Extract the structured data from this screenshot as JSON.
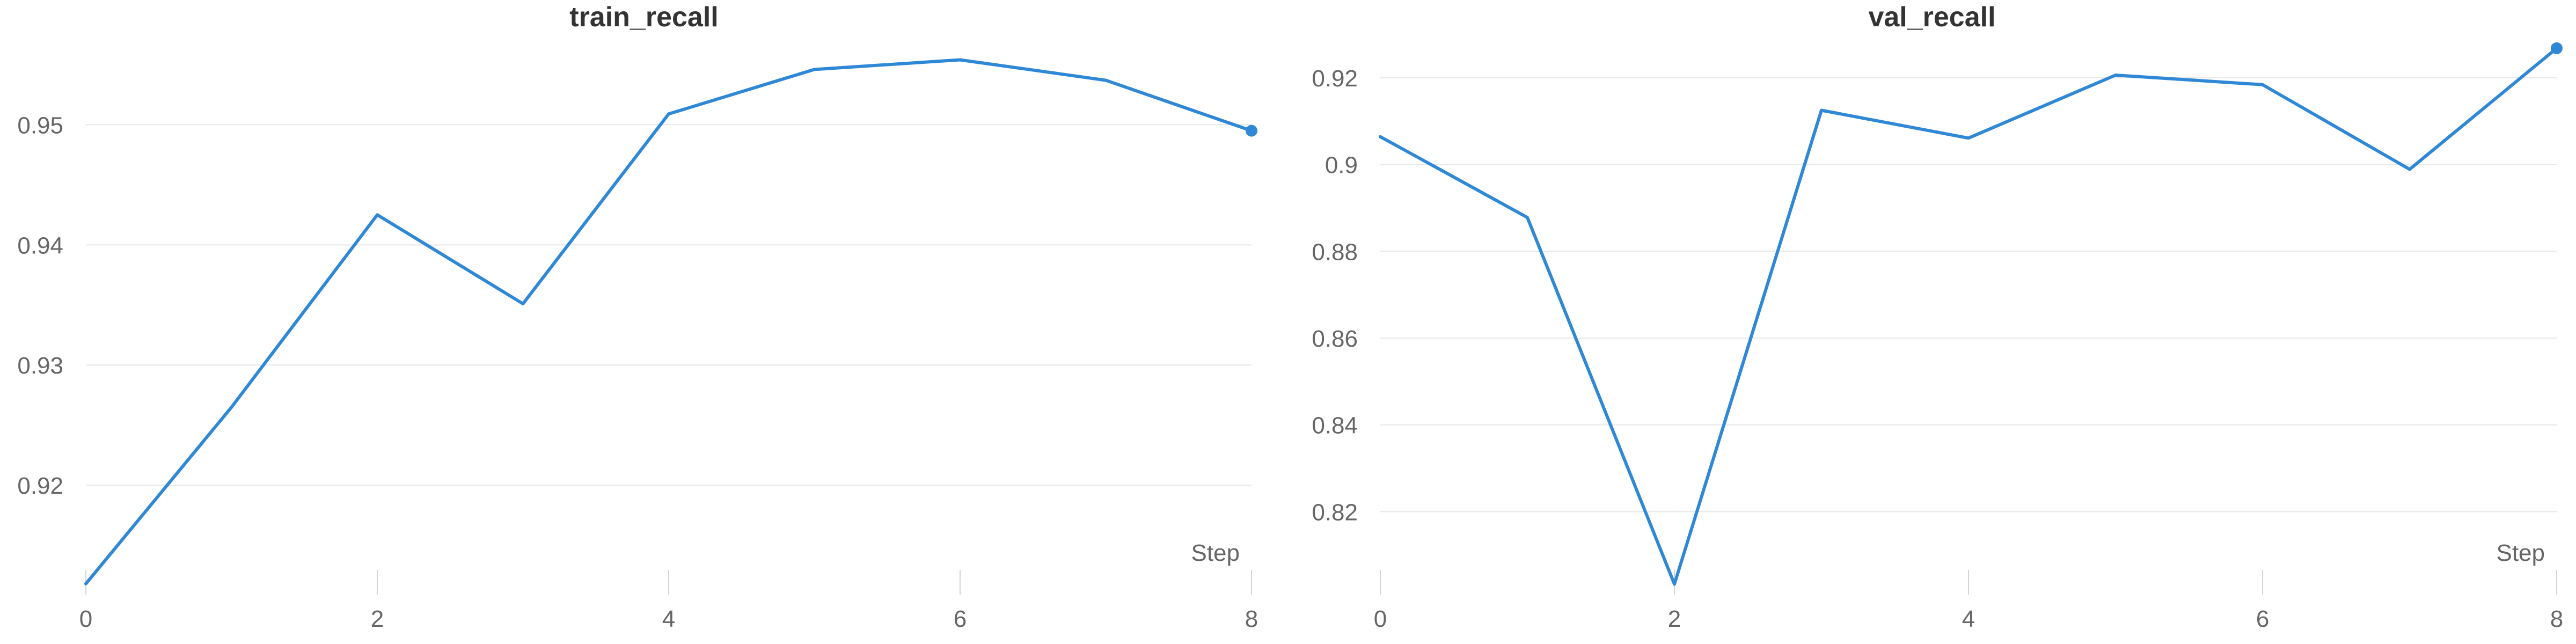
{
  "colors": {
    "series": "#2f88d6",
    "grid": "#e8e8e8",
    "tick_text": "#666666",
    "title_text": "#333333",
    "tick_mark": "#d4d4d4"
  },
  "chart_data": [
    {
      "type": "line",
      "title": "train_recall",
      "xlabel": "Step",
      "ylabel": "",
      "x": [
        0,
        1,
        2,
        3,
        4,
        5,
        6,
        7,
        8
      ],
      "series": [
        {
          "values": [
            0.9118,
            0.9265,
            0.9425,
            0.9351,
            0.9509,
            0.9546,
            0.9554,
            0.9537,
            0.9495
          ]
        }
      ],
      "xlim": [
        0,
        8
      ],
      "ylim": [
        0.9117,
        0.9577
      ],
      "xticks": [
        0,
        2,
        4,
        6,
        8
      ],
      "yticks": [
        0.92,
        0.93,
        0.94,
        0.95
      ],
      "ytick_labels": [
        "0.92",
        "0.93",
        "0.94",
        "0.95"
      ],
      "grid": true,
      "end_marker": true
    },
    {
      "type": "line",
      "title": "val_recall",
      "xlabel": "Step",
      "ylabel": "",
      "x": [
        0,
        1,
        2,
        3,
        4,
        5,
        6,
        7,
        8
      ],
      "series": [
        {
          "values": [
            0.9064,
            0.8878,
            0.8033,
            0.9125,
            0.9061,
            0.9206,
            0.9184,
            0.8989,
            0.9268
          ]
        }
      ],
      "xlim": [
        0,
        8
      ],
      "ylim": [
        0.8031,
        0.9305
      ],
      "xticks": [
        0,
        2,
        4,
        6,
        8
      ],
      "yticks": [
        0.82,
        0.84,
        0.86,
        0.88,
        0.9,
        0.92
      ],
      "ytick_labels": [
        "0.82",
        "0.84",
        "0.86",
        "0.88",
        "0.9",
        "0.92"
      ],
      "grid": true,
      "end_marker": true
    }
  ]
}
